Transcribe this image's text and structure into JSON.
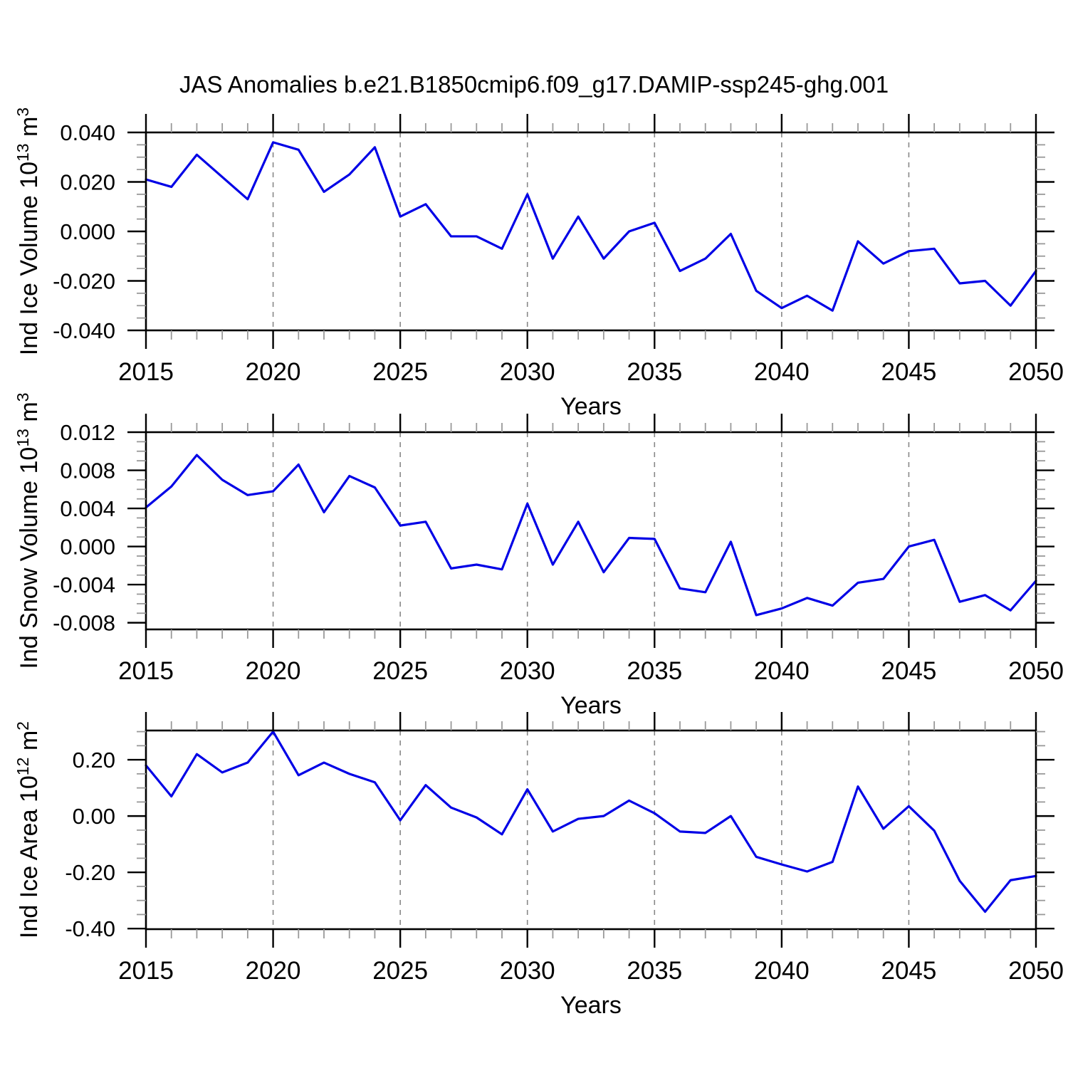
{
  "page": {
    "title": "JAS Anomalies b.e21.B1850cmip6.f09_g17.DAMIP-ssp245-ghg.001"
  },
  "colors": {
    "line": "#0000e6",
    "grid": "#888888",
    "axis": "#000000",
    "minor_tick": "#999999"
  },
  "chart_data": [
    {
      "type": "line",
      "name": "ice-volume",
      "xlabel": "Years",
      "ylabel_runs": [
        {
          "text": "Ind Ice Volume 10",
          "sup": false
        },
        {
          "text": "13",
          "sup": true
        },
        {
          "text": " m",
          "sup": false
        },
        {
          "text": "3",
          "sup": true
        }
      ],
      "xlim": [
        2015,
        2050
      ],
      "ylim": [
        -0.04,
        0.04
      ],
      "xticks": [
        2015,
        2020,
        2025,
        2030,
        2035,
        2040,
        2045,
        2050
      ],
      "x_minor_step": 1,
      "grid_x": [
        2020,
        2025,
        2030,
        2035,
        2040,
        2045
      ],
      "yticks": [
        {
          "v": 0.04,
          "label": "0.040"
        },
        {
          "v": 0.02,
          "label": "0.020"
        },
        {
          "v": 0.0,
          "label": "0.000"
        },
        {
          "v": -0.02,
          "label": "-0.020"
        },
        {
          "v": -0.04,
          "label": "-0.040"
        }
      ],
      "y_minor_step": 0.005,
      "x": [
        2015,
        2016,
        2017,
        2018,
        2019,
        2020,
        2021,
        2022,
        2023,
        2024,
        2025,
        2026,
        2027,
        2028,
        2029,
        2030,
        2031,
        2032,
        2033,
        2034,
        2035,
        2036,
        2037,
        2038,
        2039,
        2040,
        2041,
        2042,
        2043,
        2044,
        2045,
        2046,
        2047,
        2048,
        2049,
        2050
      ],
      "values": [
        0.021,
        0.018,
        0.031,
        0.022,
        0.013,
        0.036,
        0.033,
        0.016,
        0.023,
        0.034,
        0.006,
        0.011,
        -0.002,
        -0.002,
        -0.007,
        0.015,
        -0.011,
        0.006,
        -0.011,
        0.0,
        0.0035,
        -0.016,
        -0.011,
        -0.001,
        -0.024,
        -0.031,
        -0.026,
        -0.032,
        -0.004,
        -0.013,
        -0.008,
        -0.007,
        -0.021,
        -0.02,
        -0.03,
        -0.016
      ]
    },
    {
      "type": "line",
      "name": "snow-volume",
      "xlabel": "Years",
      "ylabel_runs": [
        {
          "text": "Ind Snow Volume 10",
          "sup": false
        },
        {
          "text": "13",
          "sup": true
        },
        {
          "text": " m",
          "sup": false
        },
        {
          "text": "3",
          "sup": true
        }
      ],
      "xlim": [
        2015,
        2050
      ],
      "ylim": [
        -0.0087,
        0.012
      ],
      "xticks": [
        2015,
        2020,
        2025,
        2030,
        2035,
        2040,
        2045,
        2050
      ],
      "x_minor_step": 1,
      "grid_x": [
        2020,
        2025,
        2030,
        2035,
        2040,
        2045
      ],
      "yticks": [
        {
          "v": 0.012,
          "label": "0.012"
        },
        {
          "v": 0.008,
          "label": "0.008"
        },
        {
          "v": 0.004,
          "label": "0.004"
        },
        {
          "v": 0.0,
          "label": "0.000"
        },
        {
          "v": -0.004,
          "label": "-0.004"
        },
        {
          "v": -0.008,
          "label": "-0.008"
        }
      ],
      "y_minor_step": 0.001,
      "x": [
        2015,
        2016,
        2017,
        2018,
        2019,
        2020,
        2021,
        2022,
        2023,
        2024,
        2025,
        2026,
        2027,
        2028,
        2029,
        2030,
        2031,
        2032,
        2033,
        2034,
        2035,
        2036,
        2037,
        2038,
        2039,
        2040,
        2041,
        2042,
        2043,
        2044,
        2045,
        2046,
        2047,
        2048,
        2049,
        2050
      ],
      "values": [
        0.0041,
        0.0063,
        0.0096,
        0.007,
        0.0054,
        0.0058,
        0.0086,
        0.0036,
        0.0074,
        0.0062,
        0.0022,
        0.0026,
        -0.0023,
        -0.0019,
        -0.0024,
        0.0045,
        -0.0019,
        0.0026,
        -0.0027,
        0.0009,
        0.0008,
        -0.0044,
        -0.0048,
        0.0005,
        -0.0072,
        -0.0065,
        -0.0054,
        -0.0062,
        -0.0038,
        -0.0034,
        0.0,
        0.0007,
        -0.0058,
        -0.0051,
        -0.0067,
        -0.0036
      ]
    },
    {
      "type": "line",
      "name": "ice-area",
      "xlabel": "Years",
      "ylabel_runs": [
        {
          "text": "Ind Ice Area 10",
          "sup": false
        },
        {
          "text": "12",
          "sup": true
        },
        {
          "text": " m",
          "sup": false
        },
        {
          "text": "2",
          "sup": true
        }
      ],
      "xlim": [
        2015,
        2050
      ],
      "ylim": [
        -0.402,
        0.304
      ],
      "xticks": [
        2015,
        2020,
        2025,
        2030,
        2035,
        2040,
        2045,
        2050
      ],
      "x_minor_step": 1,
      "grid_x": [
        2020,
        2025,
        2030,
        2035,
        2040,
        2045
      ],
      "yticks": [
        {
          "v": 0.2,
          "label": "0.20"
        },
        {
          "v": 0.0,
          "label": "0.00"
        },
        {
          "v": -0.2,
          "label": "-0.20"
        },
        {
          "v": -0.4,
          "label": "-0.40"
        }
      ],
      "y_minor_step": 0.05,
      "x": [
        2015,
        2016,
        2017,
        2018,
        2019,
        2020,
        2021,
        2022,
        2023,
        2024,
        2025,
        2026,
        2027,
        2028,
        2029,
        2030,
        2031,
        2032,
        2033,
        2034,
        2035,
        2036,
        2037,
        2038,
        2039,
        2040,
        2041,
        2042,
        2043,
        2044,
        2045,
        2046,
        2047,
        2048,
        2049,
        2050
      ],
      "values": [
        0.18,
        0.07,
        0.22,
        0.155,
        0.19,
        0.3,
        0.145,
        0.19,
        0.15,
        0.12,
        -0.015,
        0.11,
        0.03,
        -0.005,
        -0.065,
        0.095,
        -0.055,
        -0.01,
        0.0,
        0.055,
        0.01,
        -0.055,
        -0.06,
        0.0,
        -0.145,
        -0.172,
        -0.197,
        -0.163,
        0.105,
        -0.045,
        0.035,
        -0.052,
        -0.23,
        -0.34,
        -0.228,
        -0.213
      ]
    }
  ]
}
